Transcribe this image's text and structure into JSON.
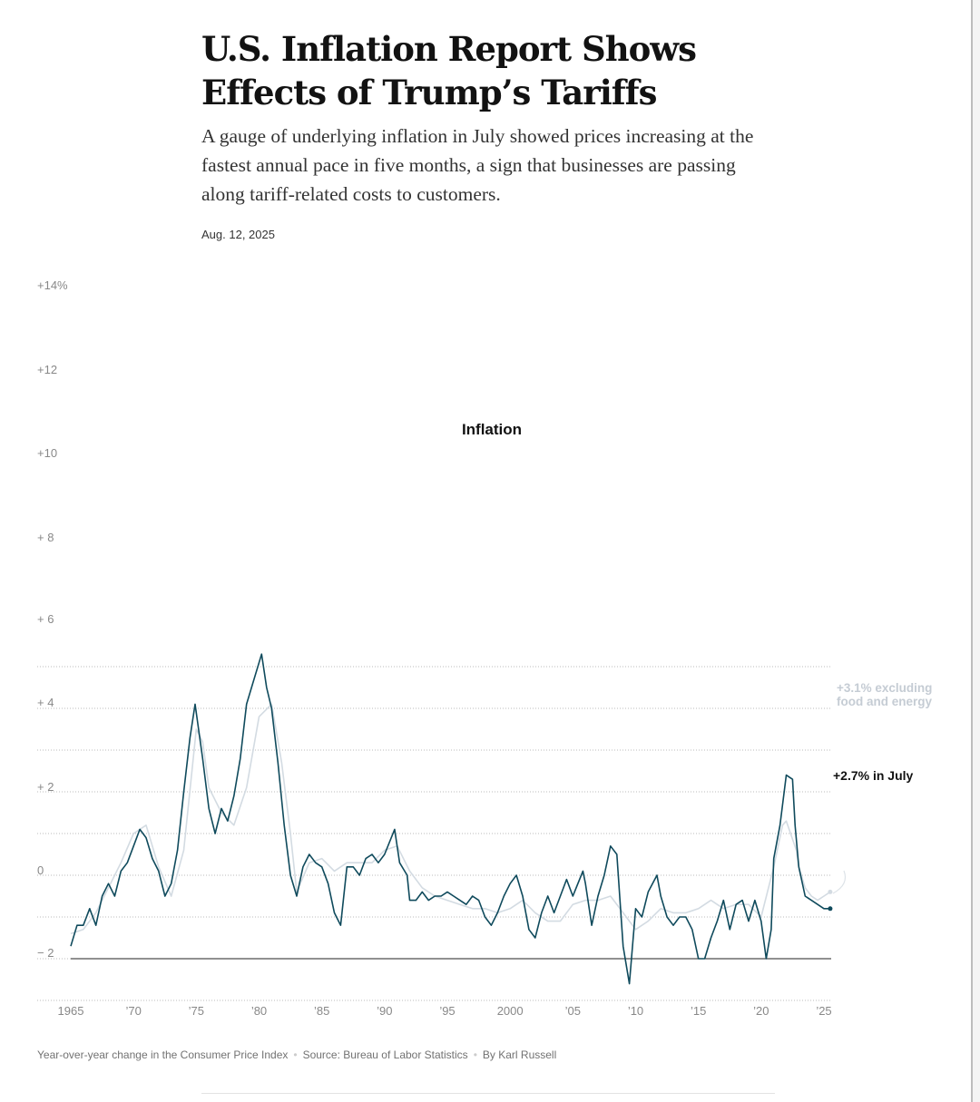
{
  "article": {
    "headline": "U.S. Inflation Report Shows Effects of Trump’s Tariffs",
    "summary": "A gauge of underlying inflation in July showed prices increasing at the fastest annual pace in five months, a sign that businesses are passing along tariff-related costs to customers.",
    "date": "Aug. 12, 2025"
  },
  "footer": {
    "description": "Year-over-year change in the Consumer Price Index",
    "source": "Source: Bureau of Labor Statistics",
    "byline": "By Karl Russell"
  },
  "colors": {
    "headline_series": "#0f4a5c",
    "core_series": "#d3dbe2",
    "grid": "#bbbbbb"
  },
  "chart_data": {
    "type": "line",
    "title": "Inflation",
    "xlabel": "",
    "ylabel": "Year-over-year change in the Consumer Price Index",
    "y_tick_labels": [
      "+14%",
      "+12",
      "+10",
      "+ 8",
      "+ 6",
      "+ 4",
      "+ 2",
      "0",
      "− 2"
    ],
    "x_tick_labels": [
      "1965",
      "’70",
      "’75",
      "’80",
      "’85",
      "’90",
      "’95",
      "2000",
      "’05",
      "’10",
      "’15",
      "’20",
      "’25"
    ],
    "x_ticks": [
      1965,
      1970,
      1975,
      1980,
      1985,
      1990,
      1995,
      2000,
      2005,
      2010,
      2015,
      2020,
      2025
    ],
    "xlim": [
      1965,
      2025.6
    ],
    "ylim_visual": [
      -3,
      5.5
    ],
    "gridlines": [
      -3,
      -2,
      -1,
      0,
      1,
      2,
      3,
      4,
      5
    ],
    "baseline": -2,
    "grid": true,
    "annotations": [
      {
        "series": "Core CPI",
        "text_lines": [
          "+3.1% excluding",
          "food and energy"
        ],
        "x": 2025.55
      },
      {
        "series": "CPI",
        "text": "+2.7% in July",
        "x": 2025.55
      }
    ],
    "series": [
      {
        "name": "CPI",
        "x": [
          1965.0,
          1965.5,
          1966.0,
          1966.5,
          1967.0,
          1967.5,
          1968.0,
          1968.5,
          1969.0,
          1969.5,
          1970.0,
          1970.5,
          1971.0,
          1971.5,
          1972.0,
          1972.5,
          1973.0,
          1973.5,
          1974.0,
          1974.5,
          1974.9,
          1975.5,
          1976.0,
          1976.5,
          1977.0,
          1977.5,
          1978.0,
          1978.5,
          1979.0,
          1979.5,
          1980.2,
          1980.6,
          1981.0,
          1981.5,
          1982.0,
          1982.5,
          1983.0,
          1983.5,
          1984.0,
          1984.5,
          1985.0,
          1985.5,
          1986.0,
          1986.5,
          1987.0,
          1987.5,
          1988.0,
          1988.5,
          1989.0,
          1989.5,
          1990.0,
          1990.8,
          1991.2,
          1991.8,
          1992.0,
          1992.5,
          1993.0,
          1993.5,
          1994.0,
          1994.5,
          1995.0,
          1995.5,
          1996.0,
          1996.5,
          1997.0,
          1997.5,
          1998.0,
          1998.5,
          1999.0,
          1999.5,
          2000.0,
          2000.5,
          2001.0,
          2001.5,
          2002.0,
          2002.5,
          2003.0,
          2003.5,
          2004.0,
          2004.5,
          2005.0,
          2005.8,
          2006.0,
          2006.5,
          2007.0,
          2007.5,
          2008.0,
          2008.5,
          2009.0,
          2009.5,
          2010.0,
          2010.5,
          2011.0,
          2011.7,
          2012.0,
          2012.5,
          2013.0,
          2013.5,
          2014.0,
          2014.5,
          2015.0,
          2015.5,
          2016.0,
          2016.5,
          2017.0,
          2017.5,
          2018.0,
          2018.5,
          2019.0,
          2019.5,
          2020.0,
          2020.4,
          2020.8,
          2021.0,
          2021.5,
          2022.0,
          2022.5,
          2022.7,
          2023.0,
          2023.5,
          2024.0,
          2024.5,
          2025.0,
          2025.5
        ],
        "values": [
          -1.7,
          -1.2,
          -1.2,
          -0.8,
          -1.2,
          -0.5,
          -0.2,
          -0.5,
          0.1,
          0.3,
          0.7,
          1.1,
          0.9,
          0.4,
          0.1,
          -0.5,
          -0.2,
          0.6,
          2.0,
          3.3,
          4.1,
          2.8,
          1.6,
          1.0,
          1.6,
          1.3,
          1.9,
          2.8,
          4.1,
          4.6,
          5.3,
          4.5,
          4.0,
          2.7,
          1.2,
          0.0,
          -0.5,
          0.2,
          0.5,
          0.3,
          0.2,
          -0.2,
          -0.9,
          -1.2,
          0.2,
          0.2,
          0.0,
          0.4,
          0.5,
          0.3,
          0.5,
          1.1,
          0.3,
          0.0,
          -0.6,
          -0.6,
          -0.4,
          -0.6,
          -0.5,
          -0.5,
          -0.4,
          -0.5,
          -0.6,
          -0.7,
          -0.5,
          -0.6,
          -1.0,
          -1.2,
          -0.9,
          -0.5,
          -0.2,
          0.0,
          -0.5,
          -1.3,
          -1.5,
          -0.9,
          -0.5,
          -0.9,
          -0.5,
          -0.1,
          -0.5,
          0.1,
          -0.2,
          -1.2,
          -0.5,
          0.0,
          0.7,
          0.5,
          -1.7,
          -2.6,
          -0.8,
          -1.0,
          -0.4,
          0.0,
          -0.5,
          -1.0,
          -1.2,
          -1.0,
          -1.0,
          -1.3,
          -2.0,
          -2.0,
          -1.5,
          -1.1,
          -0.6,
          -1.3,
          -0.7,
          -0.6,
          -1.1,
          -0.6,
          -1.1,
          -2.0,
          -1.3,
          0.4,
          1.2,
          2.4,
          2.3,
          1.2,
          0.2,
          -0.5,
          -0.6,
          -0.7,
          -0.8,
          -0.8
        ]
      },
      {
        "name": "Core CPI",
        "x": [
          1965.0,
          1966.0,
          1967.0,
          1968.0,
          1969.0,
          1970.0,
          1971.0,
          1972.0,
          1973.0,
          1974.0,
          1975.0,
          1975.5,
          1976.0,
          1977.0,
          1978.0,
          1979.0,
          1980.0,
          1981.0,
          1981.8,
          1982.5,
          1983.0,
          1984.0,
          1985.0,
          1986.0,
          1987.0,
          1988.0,
          1989.0,
          1990.0,
          1991.0,
          1992.0,
          1993.0,
          1994.0,
          1995.0,
          1996.0,
          1997.0,
          1998.0,
          1999.0,
          2000.0,
          2001.0,
          2002.0,
          2003.0,
          2004.0,
          2005.0,
          2006.0,
          2007.0,
          2008.0,
          2009.0,
          2010.0,
          2011.0,
          2012.0,
          2013.0,
          2014.0,
          2015.0,
          2016.0,
          2017.0,
          2018.0,
          2019.0,
          2020.0,
          2021.0,
          2021.7,
          2022.0,
          2022.8,
          2023.0,
          2023.5,
          2024.0,
          2024.5,
          2025.0,
          2025.5
        ],
        "values": [
          -1.4,
          -1.3,
          -0.9,
          -0.3,
          0.3,
          1.0,
          1.2,
          0.2,
          -0.5,
          0.6,
          3.5,
          3.2,
          2.1,
          1.5,
          1.2,
          2.1,
          3.8,
          4.1,
          2.7,
          1.0,
          -0.4,
          0.3,
          0.4,
          0.1,
          0.3,
          0.3,
          0.3,
          0.6,
          0.7,
          0.1,
          -0.3,
          -0.5,
          -0.6,
          -0.7,
          -0.8,
          -0.8,
          -0.9,
          -0.8,
          -0.6,
          -0.9,
          -1.1,
          -1.1,
          -0.7,
          -0.6,
          -0.6,
          -0.5,
          -0.9,
          -1.3,
          -1.1,
          -0.8,
          -0.9,
          -0.9,
          -0.8,
          -0.6,
          -0.8,
          -0.7,
          -0.7,
          -1.0,
          0.2,
          1.2,
          1.3,
          0.6,
          0.2,
          -0.3,
          -0.5,
          -0.6,
          -0.5,
          -0.4
        ]
      }
    ]
  }
}
